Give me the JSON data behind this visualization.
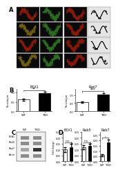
{
  "panel_A_label": "A",
  "panel_B_label": "B",
  "panel_C_label": "C",
  "panel_D_label": "D",
  "panel_B": {
    "EEA1": {
      "title": "EEA1",
      "ylabel": "Puncta/µm",
      "WT_mean": 0.62,
      "WT_err": 0.06,
      "TKO_mean": 0.95,
      "TKO_err": 0.07,
      "sig": "**",
      "ylim": [
        0,
        1.2
      ]
    },
    "Rab7": {
      "title": "Rab7",
      "ylabel": "Puncta/µm",
      "WT_mean": 0.55,
      "WT_err": 0.05,
      "TKO_mean": 1.05,
      "TKO_err": 0.08,
      "sig": "***",
      "ylim": [
        0,
        1.4
      ]
    }
  },
  "panel_D": {
    "EEA1": {
      "title": "EEA1",
      "ylabel": "Fold change",
      "WT_mean": 0.1,
      "WT_err": 0.02,
      "TKO_mean": 0.12,
      "TKO_err": 0.03,
      "sig": "n.s.",
      "ylim": [
        0,
        0.25
      ]
    },
    "Rab5": {
      "title": "Rab5",
      "ylabel": "Fold change",
      "WT_mean": 0.12,
      "WT_err": 0.02,
      "TKO_mean": 0.13,
      "TKO_err": 0.02,
      "sig": "n.s.",
      "ylim": [
        0,
        0.25
      ]
    },
    "Rab7": {
      "title": "Rab7",
      "ylabel": "Fold change",
      "WT_mean": 0.06,
      "WT_err": 0.01,
      "TKO_mean": 0.18,
      "TKO_err": 0.03,
      "sig": "*",
      "ylim": [
        0,
        0.28
      ]
    }
  },
  "bar_colors": {
    "WT": "white",
    "TKO": "black"
  },
  "bar_edgecolor": "black",
  "xtick_labels": [
    "WT",
    "TKO"
  ],
  "bg_color": "white",
  "text_color": "black"
}
